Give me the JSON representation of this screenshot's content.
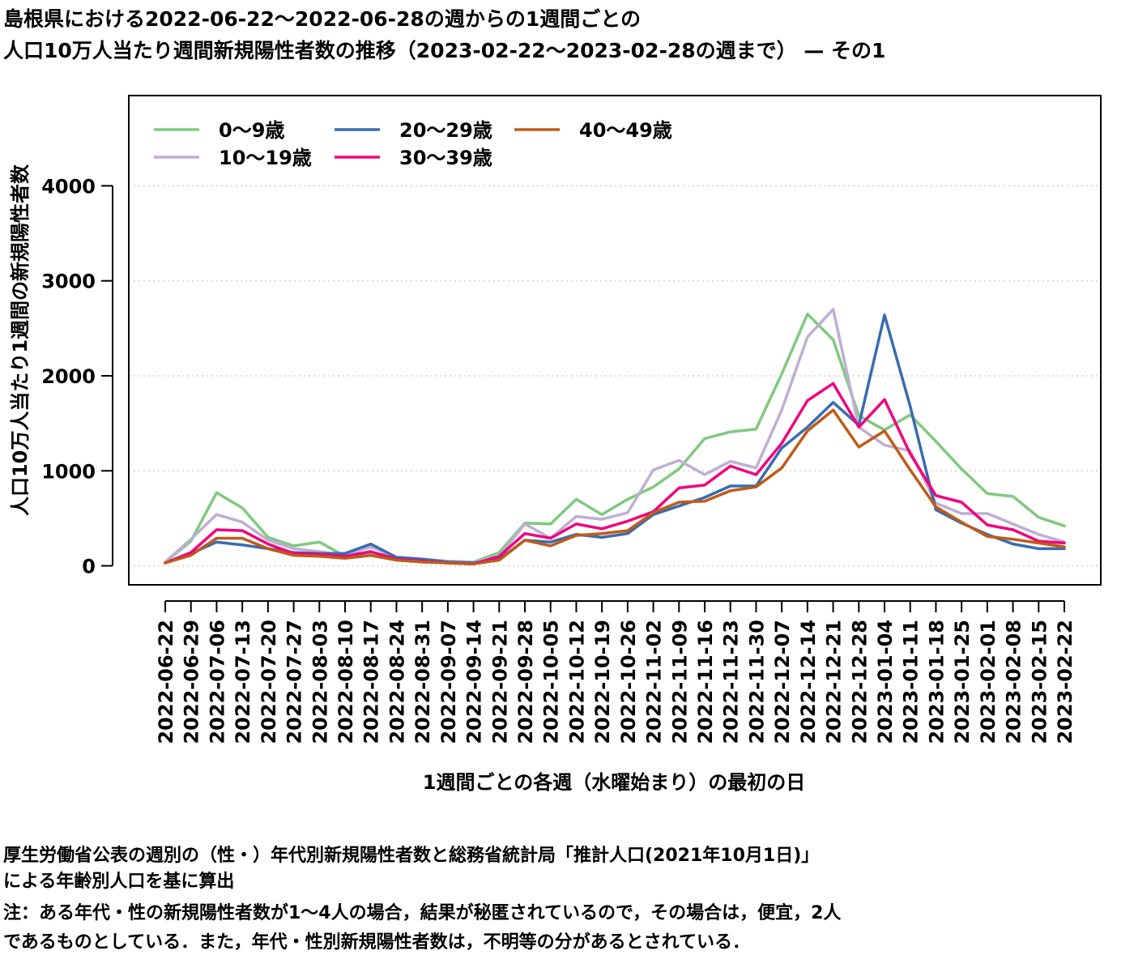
{
  "title_lines": [
    "島根県における2022-06-22〜2022-06-28の週からの1週間ごとの",
    "人口10万人当たり週間新規陽性者数の推移（2023-02-22〜2023-02-28の週まで） — その1"
  ],
  "footnote_lines": [
    "厚生労働省公表の週別の（性・）年代別新規陽性者数と総務省統計局「推計人口(2021年10月1日)」",
    "による年齢別人口を基に算出",
    "注：ある年代・性の新規陽性者数が1〜4人の場合，結果が秘匿されているので，その場合は，便宜，2人",
    "であるものとしている．また，年代・性別新規陽性者数は，不明等の分があるとされている．"
  ],
  "chart_data": {
    "type": "line",
    "xlabel": "1週間ごとの各週（水曜始まり）の最初の日",
    "ylabel": "人口10万人当たり1週間の新規陽性者数",
    "ylim": [
      -200,
      4950
    ],
    "yticks": [
      0,
      1000,
      2000,
      3000,
      4000
    ],
    "grid": "horizontal dotted",
    "legend_position": "top-left",
    "categories": [
      "2022-06-22",
      "2022-06-29",
      "2022-07-06",
      "2022-07-13",
      "2022-07-20",
      "2022-07-27",
      "2022-08-03",
      "2022-08-10",
      "2022-08-17",
      "2022-08-24",
      "2022-08-31",
      "2022-09-07",
      "2022-09-14",
      "2022-09-21",
      "2022-09-28",
      "2022-10-05",
      "2022-10-12",
      "2022-10-19",
      "2022-10-26",
      "2022-11-02",
      "2022-11-09",
      "2022-11-16",
      "2022-11-23",
      "2022-11-30",
      "2022-12-07",
      "2022-12-14",
      "2022-12-21",
      "2022-12-28",
      "2023-01-04",
      "2023-01-11",
      "2023-01-18",
      "2023-01-25",
      "2023-02-01",
      "2023-02-08",
      "2023-02-15",
      "2023-02-22"
    ],
    "series": [
      {
        "name": "0〜9歳",
        "color": "#7fc97f",
        "values": [
          40,
          260,
          770,
          610,
          300,
          210,
          250,
          100,
          140,
          90,
          60,
          40,
          40,
          140,
          450,
          440,
          700,
          540,
          700,
          830,
          1020,
          1340,
          1410,
          1440,
          2020,
          2650,
          2380,
          1580,
          1430,
          1590,
          1310,
          1020,
          760,
          730,
          510,
          420
        ]
      },
      {
        "name": "10〜19歳",
        "color": "#beaed4",
        "values": [
          40,
          280,
          540,
          460,
          270,
          180,
          150,
          110,
          200,
          90,
          70,
          50,
          40,
          100,
          440,
          290,
          520,
          490,
          560,
          1010,
          1110,
          960,
          1100,
          1030,
          1640,
          2410,
          2700,
          1460,
          1270,
          1210,
          660,
          550,
          550,
          440,
          330,
          250
        ]
      },
      {
        "name": "20〜29歳",
        "color": "#386cb0",
        "values": [
          30,
          130,
          250,
          220,
          180,
          140,
          130,
          130,
          230,
          90,
          70,
          40,
          30,
          70,
          270,
          250,
          330,
          300,
          340,
          540,
          630,
          720,
          840,
          840,
          1240,
          1460,
          1720,
          1480,
          2640,
          1680,
          590,
          450,
          330,
          230,
          180,
          180
        ]
      },
      {
        "name": "30〜39歳",
        "color": "#f0027f",
        "values": [
          30,
          140,
          380,
          370,
          230,
          130,
          120,
          100,
          150,
          70,
          50,
          30,
          20,
          100,
          340,
          290,
          440,
          390,
          470,
          570,
          820,
          850,
          1050,
          960,
          1290,
          1740,
          1920,
          1460,
          1750,
          1180,
          740,
          670,
          430,
          380,
          260,
          240
        ]
      },
      {
        "name": "40〜49歳",
        "color": "#bf5b17",
        "values": [
          30,
          110,
          290,
          290,
          180,
          110,
          100,
          80,
          110,
          60,
          40,
          30,
          20,
          60,
          270,
          210,
          320,
          340,
          370,
          560,
          670,
          680,
          790,
          830,
          1030,
          1420,
          1640,
          1250,
          1420,
          1010,
          620,
          460,
          310,
          280,
          240,
          200
        ]
      }
    ]
  }
}
